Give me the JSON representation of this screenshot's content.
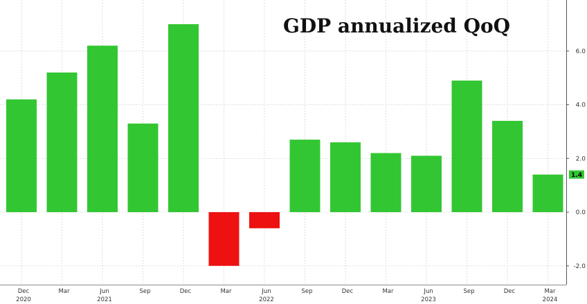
{
  "chart_data": {
    "type": "bar",
    "title": "GDP annualized QoQ",
    "xlabel": "",
    "ylabel": "",
    "categories": [
      "Dec 2020",
      "Mar 2021",
      "Jun 2021",
      "Sep 2021",
      "Dec 2021",
      "Mar 2022",
      "Jun 2022",
      "Sep 2022",
      "Dec 2022",
      "Mar 2023",
      "Jun 2023",
      "Sep 2023",
      "Dec 2023",
      "Mar 2024"
    ],
    "values": [
      4.2,
      5.2,
      6.2,
      3.3,
      7.0,
      -2.0,
      -0.6,
      2.7,
      2.6,
      2.2,
      2.1,
      4.9,
      3.4,
      1.4
    ],
    "ylim": [
      -2.7,
      7.9
    ],
    "yticks": [
      -2.0,
      0.0,
      2.0,
      4.0,
      6.0
    ],
    "ytick_labels": [
      "-2.0",
      "0.0",
      "2.0",
      "4.0",
      "6.0"
    ],
    "month_labels": [
      "Dec",
      "Mar",
      "Jun",
      "Sep",
      "Dec",
      "Mar",
      "Jun",
      "Sep",
      "Dec",
      "Mar",
      "Jun",
      "Sep",
      "Dec",
      "Mar"
    ],
    "year_labels": [
      {
        "label": "2020",
        "index": 0
      },
      {
        "label": "2021",
        "index": 2
      },
      {
        "label": "2022",
        "index": 6
      },
      {
        "label": "2023",
        "index": 10
      },
      {
        "label": "2024",
        "index": 13
      }
    ],
    "last_value_label": "1.4",
    "colors": {
      "positive": "#33c633",
      "negative": "#ee1111",
      "grid": "#dddddd",
      "last_label_bg": "#33c633"
    },
    "grid": true
  }
}
